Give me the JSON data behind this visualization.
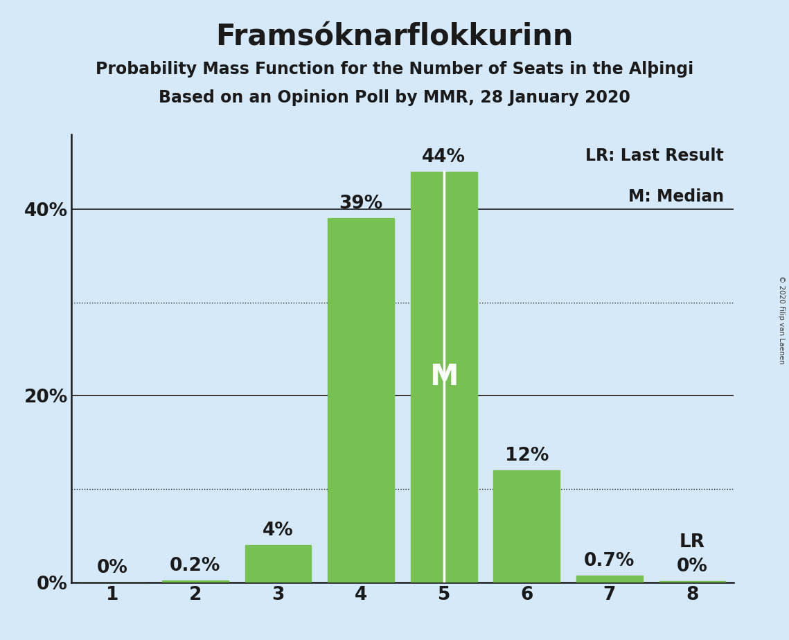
{
  "title": "Framsóknarflokkurinn",
  "subtitle1": "Probability Mass Function for the Number of Seats in the Alþingi",
  "subtitle2": "Based on an Opinion Poll by MMR, 28 January 2020",
  "copyright": "© 2020 Filip van Laenen",
  "seats": [
    1,
    2,
    3,
    4,
    5,
    6,
    7,
    8
  ],
  "probabilities": [
    0.0,
    0.002,
    0.04,
    0.39,
    0.44,
    0.12,
    0.007,
    0.001
  ],
  "bar_labels": [
    "0%",
    "0.2%",
    "4%",
    "39%",
    "44%",
    "12%",
    "0.7%",
    "0%"
  ],
  "bar_color": "#77c152",
  "median_seat": 5,
  "median_label": "M",
  "lr_seat": 8,
  "background_color": "#d6e9f8",
  "yticks": [
    0.0,
    0.2,
    0.4
  ],
  "ytick_labels": [
    "0%",
    "20%",
    "40%"
  ],
  "dotted_gridlines": [
    0.1,
    0.3
  ],
  "solid_gridlines": [
    0.2,
    0.4
  ],
  "ylim": [
    0,
    0.48
  ],
  "legend_lr": "LR: Last Result",
  "legend_m": "M: Median",
  "title_fontsize": 30,
  "subtitle_fontsize": 17,
  "bar_label_fontsize": 19,
  "axis_tick_fontsize": 19,
  "legend_fontsize": 17,
  "median_label_fontsize": 30,
  "lr_label_fontsize": 19,
  "bar_width": 0.8
}
